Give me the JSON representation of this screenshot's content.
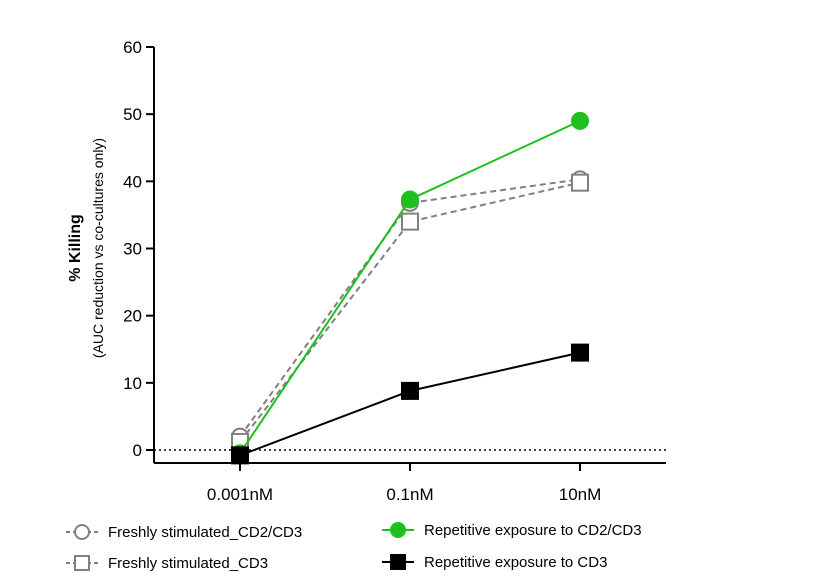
{
  "chart_data": {
    "type": "line",
    "categories": [
      "0.001nM",
      "0.1nM",
      "10nM"
    ],
    "ylabel": "% Killing",
    "ylabel_sub": "(AUC reduction vs co-cultures only)",
    "ylim": [
      -2,
      60
    ],
    "yticks": [
      0,
      10,
      20,
      30,
      40,
      50,
      60
    ],
    "reference_line": 0,
    "grid": false,
    "legend_position": "bottom",
    "series": [
      {
        "name": "Freshly stimulated_CD2/CD3",
        "values": [
          2.0,
          36.8,
          40.3
        ],
        "color": "#808080",
        "marker": "circle",
        "filled": false,
        "dashed": true
      },
      {
        "name": "Freshly stimulated_CD3",
        "values": [
          1.2,
          34.0,
          39.8
        ],
        "color": "#808080",
        "marker": "square",
        "filled": false,
        "dashed": true
      },
      {
        "name": "Repetitive exposure to CD2/CD3",
        "values": [
          -0.5,
          37.3,
          49.0
        ],
        "color": "#1ec01e",
        "marker": "circle",
        "filled": true,
        "dashed": false
      },
      {
        "name": "Repetitive exposure to CD3",
        "values": [
          -0.8,
          8.8,
          14.5
        ],
        "color": "#000000",
        "marker": "square",
        "filled": true,
        "dashed": false
      }
    ]
  }
}
